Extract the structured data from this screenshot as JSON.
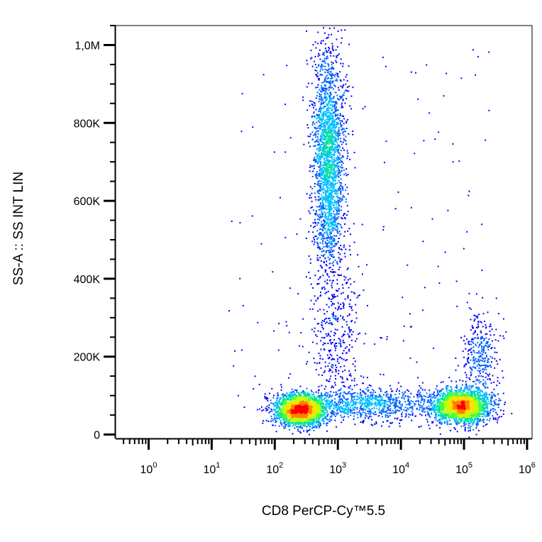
{
  "chart_data": {
    "type": "scatter",
    "style": "flow-cytometry pseudocolor density dot plot",
    "xlabel": "CD8 PerCP-Cy™5.5",
    "ylabel": "SS-A :: SS INT LIN",
    "x_scale": "log",
    "xlim": [
      0.3,
      1200000
    ],
    "x_ticks": [
      {
        "value": 1,
        "base": "10",
        "exp": "0"
      },
      {
        "value": 10,
        "base": "10",
        "exp": "1"
      },
      {
        "value": 100,
        "base": "10",
        "exp": "2"
      },
      {
        "value": 1000,
        "base": "10",
        "exp": "3"
      },
      {
        "value": 10000,
        "base": "10",
        "exp": "4"
      },
      {
        "value": 100000,
        "base": "10",
        "exp": "5"
      },
      {
        "value": 1000000,
        "base": "10",
        "exp": "6"
      }
    ],
    "y_scale": "linear",
    "ylim": [
      -10000,
      1050000
    ],
    "y_ticks": [
      {
        "value": 0,
        "label": "0"
      },
      {
        "value": 200000,
        "label": "200K"
      },
      {
        "value": 400000,
        "label": "400K"
      },
      {
        "value": 600000,
        "label": "600K"
      },
      {
        "value": 800000,
        "label": "800K"
      },
      {
        "value": 1000000,
        "label": "1,0M"
      }
    ],
    "grid": false,
    "legend": "none",
    "density_colormap": [
      "#0000ff",
      "#0060ff",
      "#00c0ff",
      "#00e0a0",
      "#40ff40",
      "#c0ff00",
      "#ffe000",
      "#ff8000",
      "#ff0000"
    ],
    "populations": [
      {
        "name_hidden": true,
        "x_center": 700,
        "y_center": 700000,
        "x_log_sd": 0.13,
        "y_sd": 150000,
        "y_range": [
          300000,
          1050000
        ],
        "peak_density": "high"
      },
      {
        "name_hidden": true,
        "x_center": 250,
        "y_center": 65000,
        "x_log_sd": 0.2,
        "y_sd": 20000,
        "peak_density": "high"
      },
      {
        "name_hidden": true,
        "x_center": 90000,
        "y_center": 75000,
        "x_log_sd": 0.22,
        "y_sd": 22000,
        "peak_density": "high"
      },
      {
        "name_hidden": true,
        "x_center": 3000,
        "y_center": 80000,
        "x_log_sd": 0.55,
        "y_sd": 20000,
        "peak_density": "medium"
      },
      {
        "name_hidden": true,
        "x_center": 900,
        "y_center": 250000,
        "x_log_sd": 0.2,
        "y_sd": 90000,
        "peak_density": "low"
      },
      {
        "name_hidden": true,
        "x_center": 180000,
        "y_center": 200000,
        "x_log_sd": 0.15,
        "y_sd": 60000,
        "peak_density": "low"
      }
    ]
  }
}
